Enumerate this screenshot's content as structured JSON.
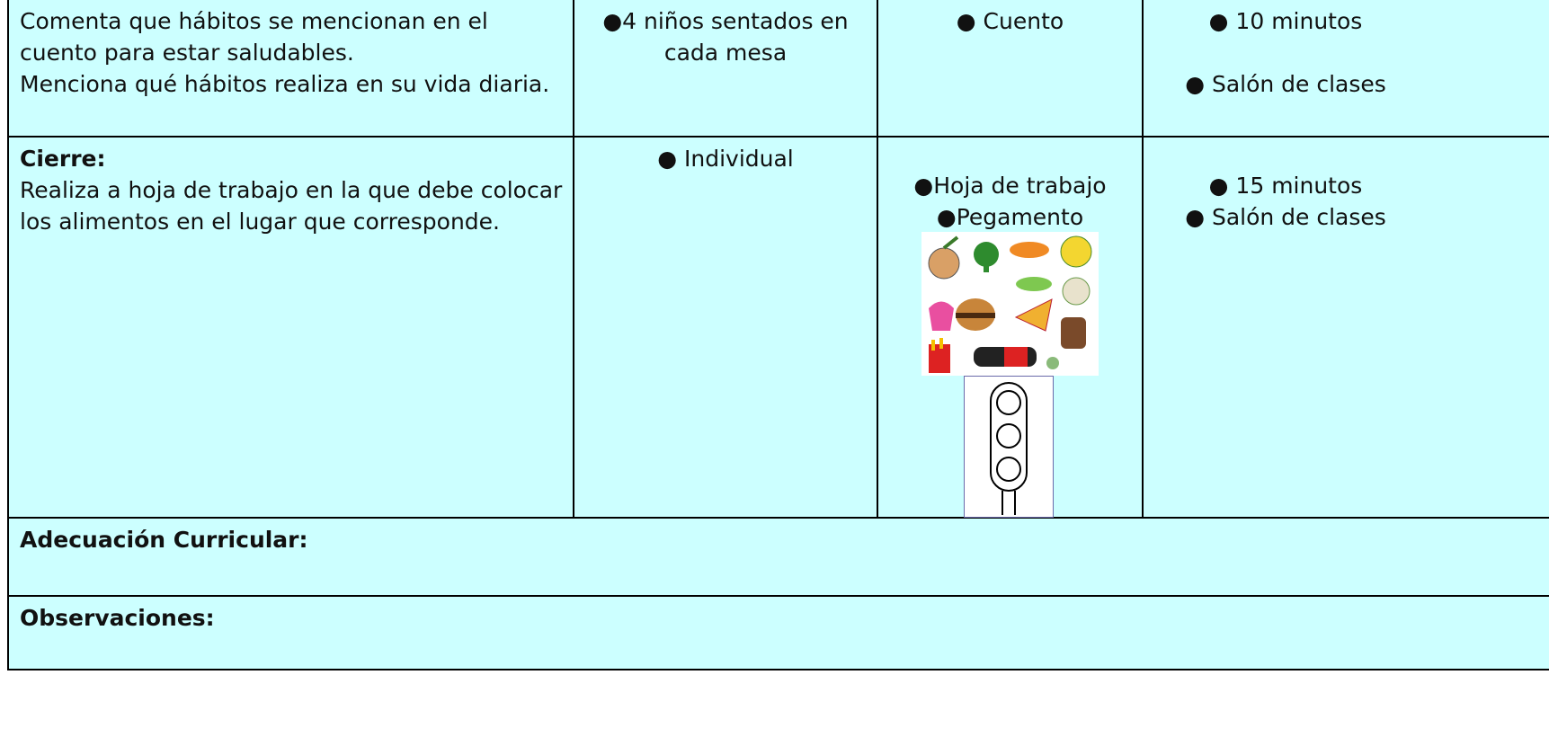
{
  "table": {
    "rows": [
      {
        "activity": [
          "Comenta que hábitos se mencionan en el cuento para estar saludables.",
          "Menciona qué hábitos realiza en su vida diaria."
        ],
        "organization": [
          "●4 niños sentados en cada mesa"
        ],
        "materials": [
          "● Cuento"
        ],
        "time": [
          "● 10 minutos",
          "● Salón de clases"
        ]
      },
      {
        "heading": "Cierre:",
        "activity": [
          "Realiza a hoja de trabajo en la que debe colocar los alimentos en el lugar que corresponde."
        ],
        "organization": [
          "● Individual"
        ],
        "materials": [
          "●Hoja de trabajo",
          "●Pegamento"
        ],
        "time": [
          "● 15 minutos",
          "● Salón de clases"
        ]
      }
    ],
    "adecuacion": "Adecuación Curricular:",
    "observaciones": "Observaciones:"
  }
}
